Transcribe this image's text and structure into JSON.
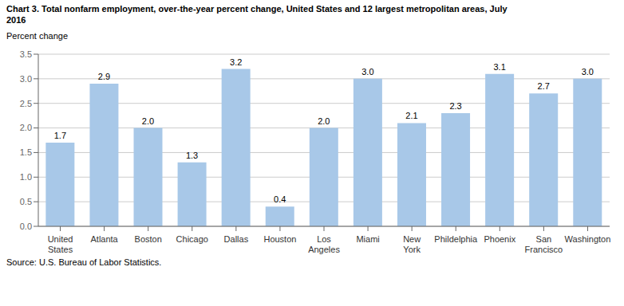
{
  "chart_data": {
    "type": "bar",
    "title": "Chart 3. Total nonfarm employment, over-the-year percent change, United States and 12 largest metropolitan areas, July\n2016",
    "ylabel": "Percent change",
    "source": "Source: U.S. Bureau of Labor Statistics.",
    "categories": [
      "United\nStates",
      "Atlanta",
      "Boston",
      "Chicago",
      "Dallas",
      "Houston",
      "Los\nAngeles",
      "Miami",
      "New\nYork",
      "Phildelphia",
      "Phoenix",
      "San\nFrancisco",
      "Washington"
    ],
    "values": [
      1.7,
      2.9,
      2.0,
      1.3,
      3.2,
      0.4,
      2.0,
      3.0,
      2.1,
      2.3,
      3.1,
      2.7,
      3.0
    ],
    "value_labels": [
      "1.7",
      "2.9",
      "2.0",
      "1.3",
      "3.2",
      "0.4",
      "2.0",
      "3.0",
      "2.1",
      "2.3",
      "3.1",
      "2.7",
      "3.0"
    ],
    "data_labels": true,
    "color": "#A8C8E8",
    "ylim": [
      0,
      3.5
    ],
    "yticks": [
      {
        "value": 0,
        "label": "0.0"
      },
      0.5,
      {
        "value": 1,
        "label": "1.0"
      },
      1.5,
      {
        "value": 2,
        "label": "2.0"
      },
      2.5,
      {
        "value": 3,
        "label": "3.0"
      },
      3.5
    ],
    "grid": true
  }
}
